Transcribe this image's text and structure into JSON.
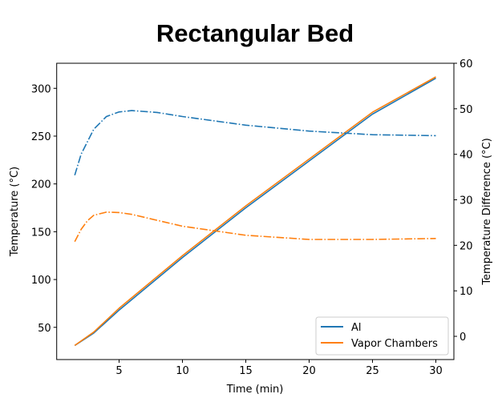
{
  "chart_data": {
    "type": "line",
    "title": "Rectangular Bed",
    "xlabel": "Time (min)",
    "ylabel": "Temperature (°C)",
    "ylabel_right": "Temperature Difference (°C)",
    "xlim": [
      0.075,
      31.425
    ],
    "ylim": [
      16.3,
      326.2
    ],
    "ylim_right": [
      -5.1,
      60
    ],
    "xticks": [
      5,
      10,
      15,
      20,
      25,
      30
    ],
    "yticks": [
      50,
      100,
      150,
      200,
      250,
      300
    ],
    "yticks_right": [
      0,
      10,
      20,
      30,
      40,
      50,
      60
    ],
    "grid": false,
    "legend": "lower-right",
    "series": [
      {
        "name": "Al",
        "axis": "left",
        "style": "solid",
        "color": "#1f77b4",
        "x": [
          1.5,
          3,
          5,
          10,
          15,
          20,
          25,
          30
        ],
        "y": [
          31,
          44,
          68,
          123,
          175,
          224,
          273,
          310.5
        ]
      },
      {
        "name": "Vapor Chambers",
        "axis": "left",
        "style": "solid",
        "color": "#ff7f0e",
        "x": [
          1.5,
          3,
          5,
          10,
          15,
          20,
          25,
          30
        ],
        "y": [
          31,
          45,
          70,
          125,
          177,
          226,
          275,
          312
        ]
      },
      {
        "axis": "right",
        "style": "dashdot",
        "color": "#1f77b4",
        "x": [
          1.5,
          2,
          3,
          4,
          5,
          6,
          8,
          10,
          15,
          20,
          25,
          30
        ],
        "y": [
          35.4,
          40,
          45.5,
          48.3,
          49.3,
          49.6,
          49.2,
          48.3,
          46.4,
          45.1,
          44.3,
          44.1
        ]
      },
      {
        "axis": "right",
        "style": "dashdot",
        "color": "#ff7f0e",
        "x": [
          1.5,
          2,
          2.5,
          3,
          4,
          5,
          6,
          8,
          10,
          15,
          20,
          25,
          30
        ],
        "y": [
          20.8,
          23.5,
          25.4,
          26.6,
          27.3,
          27.2,
          26.8,
          25.5,
          24.2,
          22.2,
          21.3,
          21.3,
          21.5
        ]
      }
    ]
  }
}
